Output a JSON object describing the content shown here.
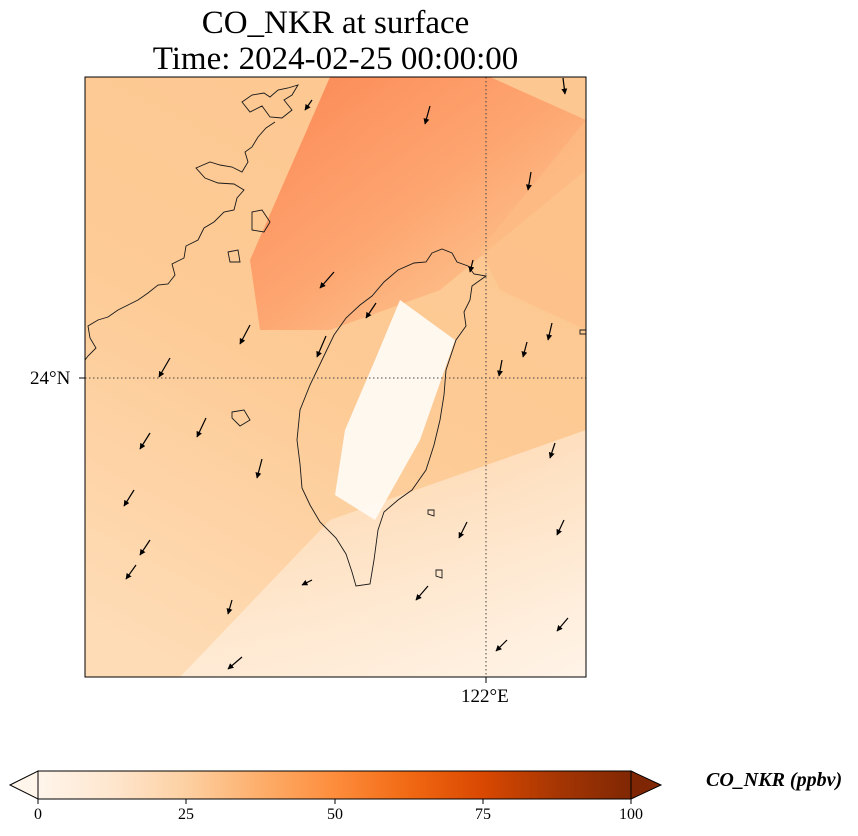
{
  "title": {
    "line1": "CO_NKR at surface",
    "line2": "Time: 2024-02-25 00:00:00"
  },
  "axes": {
    "lat_label": "24°N",
    "lon_label": "122°E",
    "gridlines": "dotted"
  },
  "colorbar": {
    "label": "CO_NKR (ppbv)",
    "ticks": [
      "0",
      "25",
      "50",
      "75",
      "100"
    ],
    "min": 0,
    "max": 100,
    "extend": "both",
    "colormap": [
      "#fff5eb",
      "#fee6ce",
      "#fdd0a2",
      "#fdae6b",
      "#fd8d3c",
      "#f16913",
      "#d94801",
      "#a63603",
      "#7f2704"
    ]
  },
  "map": {
    "field_colors": {
      "high": "#fd8d5c",
      "mid": "#fdc08a",
      "low": "#fff0dd",
      "island": "#fffaf2"
    },
    "coastline_color": "#1a1a1a",
    "wind_vectors": "black arrows, predominantly from north-northeast"
  }
}
